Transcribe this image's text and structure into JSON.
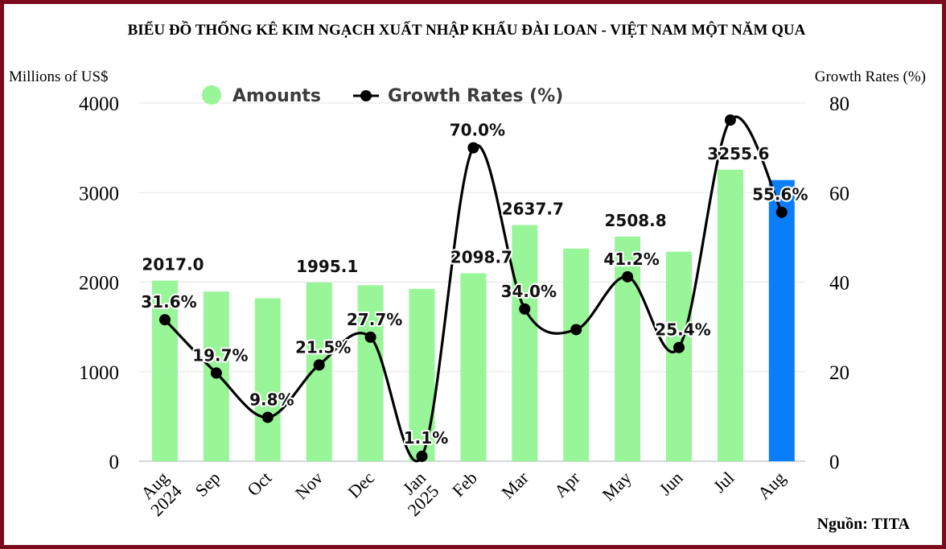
{
  "chart_data": {
    "type": "bar",
    "title": "BIỂU ĐỒ THỐNG KÊ KIM NGẠCH XUẤT NHẬP KHẨU ĐÀI LOAN - VIỆT NAM MỘT NĂM QUA",
    "ylabel_left": "Millions of US$",
    "ylabel_right": "Growth Rates (%)",
    "ylim_left": [
      0,
      4000
    ],
    "yticks_left": [
      "0",
      "1000",
      "2000",
      "3000",
      "4000"
    ],
    "ylim_right": [
      0,
      80
    ],
    "yticks_right": [
      "0",
      "20",
      "40",
      "60",
      "80"
    ],
    "categories": [
      "Aug 2024",
      "Sep",
      "Oct",
      "Nov",
      "Dec",
      "Jan 2025",
      "Feb",
      "Mar",
      "Apr",
      "May",
      "Jun",
      "Jul",
      "Aug"
    ],
    "category_lines": [
      [
        "Aug",
        "2024"
      ],
      [
        "Sep"
      ],
      [
        "Oct"
      ],
      [
        "Nov"
      ],
      [
        "Dec"
      ],
      [
        "Jan",
        "2025"
      ],
      [
        "Feb"
      ],
      [
        "Mar"
      ],
      [
        "Apr"
      ],
      [
        "May"
      ],
      [
        "Jun"
      ],
      [
        "Jul"
      ],
      [
        "Aug"
      ]
    ],
    "legend_placement": "top",
    "grid": true,
    "series": [
      {
        "name": "Amounts",
        "type": "bar",
        "axis": "left",
        "color": "#98f598",
        "highlight_color": "#0a7dfa",
        "highlight_index": 12,
        "values": [
          2017.0,
          1895,
          1820,
          1995.1,
          1965,
          1925,
          2098.7,
          2637.7,
          2375,
          2508.8,
          2340,
          3255.6,
          3140
        ],
        "labels": [
          "2017.0",
          "",
          "",
          "1995.1",
          "",
          "",
          "2098.7",
          "2637.7",
          "",
          "2508.8",
          "",
          "3255.6",
          ""
        ]
      },
      {
        "name": "Growth Rates (%)",
        "type": "line",
        "axis": "right",
        "color": "#000000",
        "values": [
          31.6,
          19.7,
          9.8,
          21.5,
          27.7,
          1.1,
          70.0,
          34.0,
          29.4,
          41.2,
          25.4,
          76.2,
          55.6
        ],
        "labels": [
          "31.6%",
          "19.7%",
          "9.8%",
          "21.5%",
          "27.7%",
          "1.1%",
          "70.0%",
          "34.0%",
          "",
          "41.2%",
          "25.4%",
          "",
          "55.6%"
        ]
      }
    ],
    "source": "Nguồn: TITA"
  }
}
